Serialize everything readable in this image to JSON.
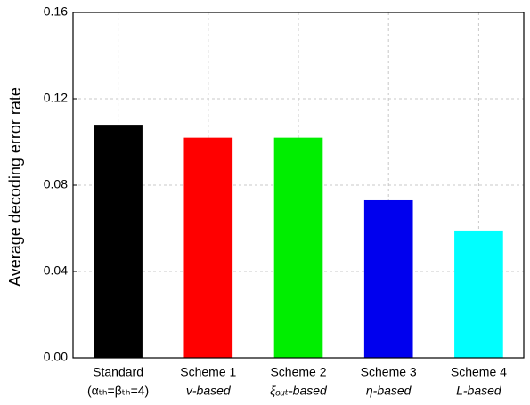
{
  "chart_data": {
    "type": "bar",
    "y_label": "Average decoding error rate",
    "categories": [
      "Standard",
      "Scheme 1",
      "Scheme 2",
      "Scheme 3",
      "Scheme 4"
    ],
    "category_sublabels": [
      "(αₜₕ=βₜₕ=4)",
      "v-based",
      "ξₒᵤₜ-based",
      "η-based",
      "L-based"
    ],
    "values": [
      0.108,
      0.102,
      0.102,
      0.073,
      0.059
    ],
    "colors": [
      "#000000",
      "#ff0000",
      "#00ee00",
      "#0000ee",
      "#00ffff"
    ],
    "ylim": [
      0,
      0.16
    ],
    "yticks": [
      {
        "value": 0,
        "label": "0.00"
      },
      0.04,
      0.08,
      0.12,
      0.16
    ],
    "grid": true
  }
}
